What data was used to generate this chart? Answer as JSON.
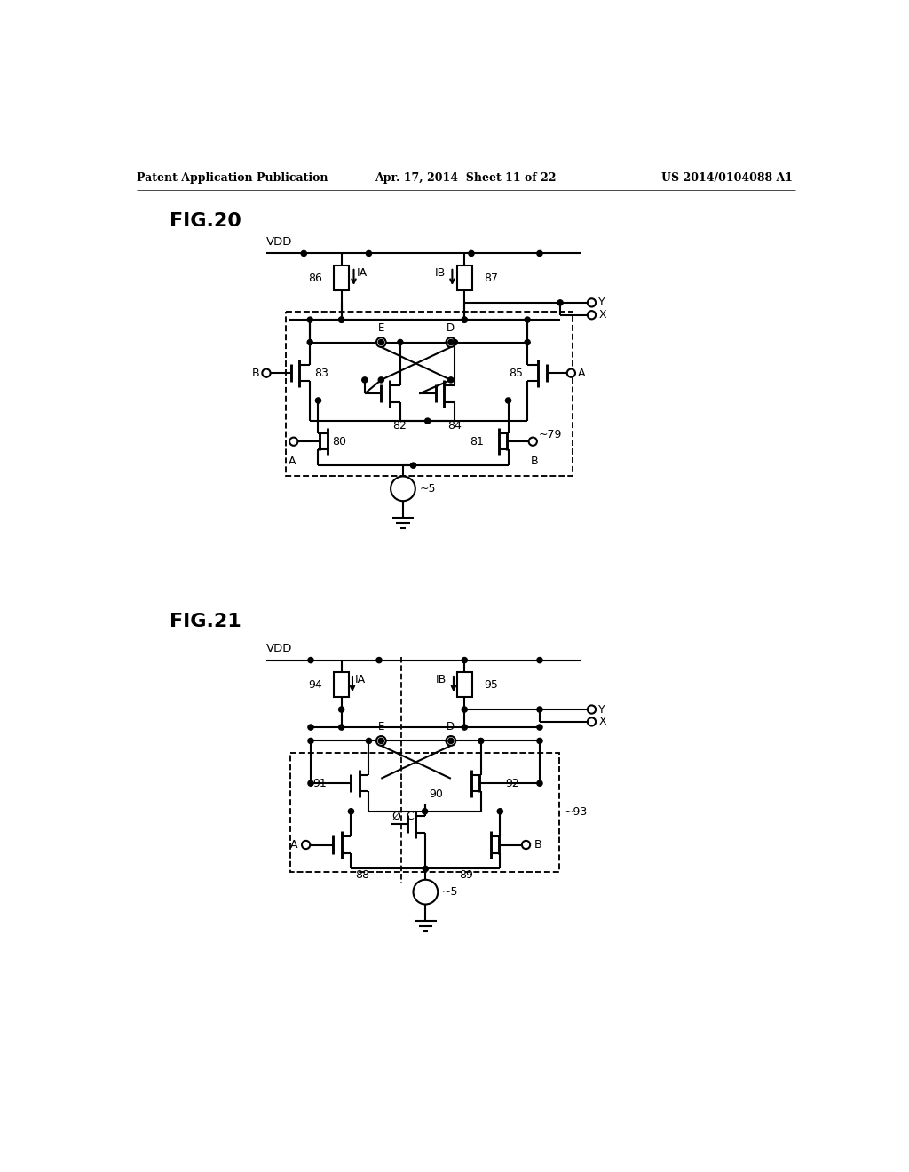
{
  "bg_color": "#ffffff",
  "line_color": "#000000",
  "lw": 1.5,
  "fig_width": 10.24,
  "fig_height": 13.2,
  "header_left": "Patent Application Publication",
  "header_center": "Apr. 17, 2014  Sheet 11 of 22",
  "header_right": "US 2014/0104088 A1",
  "fig20_label": "FIG.20",
  "fig21_label": "FIG.21"
}
